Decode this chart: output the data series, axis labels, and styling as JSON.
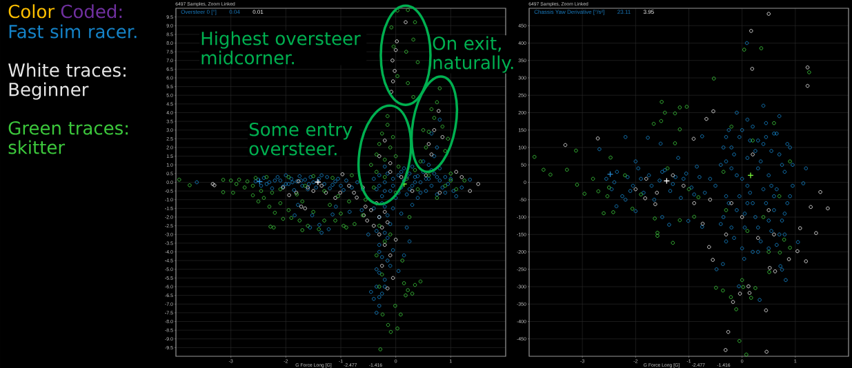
{
  "chart_data": [
    {
      "type": "scatter",
      "title": "6497 Samples, Zoom Linked",
      "xlabel": "G Force Long [G]",
      "ylabel": "Oversteer 0 [°]",
      "annotations": [
        "Color",
        "Coded:",
        {
          "text": "Highest oversteer midcorner.",
          "x": 0.18,
          "y": 7.3
        },
        {
          "text": "Some entry oversteer.",
          "x": -0.2,
          "y": 1.3
        },
        {
          "text": "On exit, naturally.",
          "x": 0.8,
          "y": 5.4
        },
        "0.04",
        "0.01",
        "-2.477",
        "-1.416"
      ],
      "xlim": [
        -4,
        2
      ],
      "ylim": [
        -10,
        10
      ],
      "xticks": [
        -3,
        -2,
        -1,
        0,
        1
      ],
      "yticks": [
        -9.5,
        {
          "value": -9,
          "label": "-9.0"
        },
        -8.5,
        {
          "value": -8,
          "label": "-8.0"
        },
        -7.5,
        {
          "value": -7,
          "label": "-7.0"
        },
        -6.5,
        {
          "value": -6,
          "label": "-6.0"
        },
        -5.5,
        {
          "value": -5,
          "label": "-5.0"
        },
        -4.5,
        {
          "value": -4,
          "label": "-4.0"
        },
        -3.5,
        {
          "value": -3,
          "label": "-3.0"
        },
        -2.5,
        {
          "value": -2,
          "label": "-2.0"
        },
        -1.5,
        {
          "value": -1,
          "label": "-1.0"
        },
        -0.5,
        {
          "value": 0,
          "label": "0.0"
        },
        0.5,
        {
          "value": 1,
          "label": "1.0"
        },
        1.5,
        {
          "value": 2,
          "label": "2.0"
        },
        2.5,
        {
          "value": 3,
          "label": "3.0"
        },
        3.5,
        {
          "value": 4,
          "label": "4.0"
        },
        4.5,
        {
          "value": 5,
          "label": "5.0"
        },
        5.5,
        {
          "value": 6,
          "label": "6.0"
        },
        6.5,
        {
          "value": 7,
          "label": "7.0"
        },
        7.5,
        {
          "value": 8,
          "label": "8.0"
        },
        8.5,
        {
          "value": 9,
          "label": "9.0"
        },
        9.5
      ],
      "grid": true,
      "legend": "left",
      "marker": "circle",
      "series": [
        {
          "name": "Fast sim racer.",
          "color": "#1583c8",
          "x": [
            -2.55,
            -2.45,
            -2.4,
            -2.3,
            -2.25,
            -2.15,
            -2.1,
            -2.05,
            -2.0,
            -1.95,
            -1.9,
            -1.85,
            -1.8,
            -1.75,
            -1.7,
            -1.65,
            -1.6,
            -1.55,
            -1.5,
            -1.45,
            -1.4,
            -1.3,
            -1.25,
            -1.2,
            -1.1,
            -1.0,
            -0.9,
            -0.8,
            -0.7,
            -0.6,
            -3.62,
            -1.35,
            -1.56,
            -1.39,
            -1.22,
            -1.52,
            -1.15,
            -1.09,
            -0.84,
            -1.84,
            -1.78,
            -0.62,
            -0.4,
            -0.35,
            -0.3,
            -0.25,
            -0.2,
            -0.15,
            -0.1,
            -0.05,
            0.0,
            0.05,
            0.1,
            0.15,
            0.2,
            0.25,
            0.3,
            0.35,
            0.4,
            0.45,
            0.5,
            0.55,
            0.6,
            0.65,
            0.7,
            0.75,
            0.8,
            0.85,
            0.9,
            0.95,
            1.0,
            0.3,
            0.5,
            0.7,
            0.75,
            0.6,
            0.15,
            -0.2,
            0.8,
            1.05,
            -0.4,
            -0.3,
            -0.2,
            -0.1,
            -0.35,
            -0.15,
            -0.3,
            -0.05,
            -0.25,
            -0.1,
            -0.3,
            -0.2,
            -0.35,
            -0.25,
            -0.4,
            -0.3,
            -0.35,
            0.1,
            0.2,
            0.25,
            0.15,
            0.3,
            0.05,
            -0.45,
            -0.5,
            1.2,
            1.35,
            1.1,
            0.65,
            0.8,
            -2.5,
            -2.35,
            -2.2,
            -2.0,
            -1.88,
            -1.72,
            -1.58,
            -1.42,
            -1.35,
            -1.15,
            -1.05,
            -0.95,
            -0.3,
            -0.2,
            -0.05,
            0.05,
            0.1,
            0.25,
            0.35,
            0.45,
            0.55,
            0.65,
            0.75,
            0.9,
            0.4,
            0.2,
            -0.25,
            -0.15,
            -0.05,
            -0.2,
            -0.3,
            -0.15,
            -0.35,
            -0.2,
            -0.3
          ],
          "values": [
            0.05,
            -0.2,
            0.25,
            0.0,
            -0.35,
            0.3,
            0.1,
            -0.25,
            0.4,
            -0.1,
            0.2,
            -0.45,
            0.05,
            0.35,
            -0.2,
            0.15,
            -0.4,
            0.3,
            0.0,
            -0.3,
            0.2,
            -0.1,
            0.3,
            -0.35,
            0.05,
            -0.2,
            0.1,
            -0.3,
            0.0,
            -0.4,
            0.0,
            -2.9,
            -2.6,
            -2.45,
            -2.7,
            -1.9,
            -1.85,
            -1.4,
            -1.7,
            -1.9,
            -1.3,
            -1.6,
            0.2,
            -0.4,
            0.4,
            -0.8,
            0.0,
            0.5,
            -0.5,
            0.2,
            -0.9,
            0.4,
            -0.3,
            0.1,
            -0.7,
            0.5,
            -0.2,
            0.3,
            -0.9,
            0.0,
            0.6,
            -0.5,
            0.2,
            -0.2,
            0.5,
            -0.7,
            0.1,
            -0.3,
            0.3,
            -0.1,
            0.2,
            0.9,
            1.2,
            1.5,
            2.0,
            1.0,
            0.8,
            0.9,
            0.8,
            -0.5,
            -1.5,
            -2.0,
            -1.4,
            -2.4,
            -2.8,
            -3.2,
            -3.6,
            -3.9,
            -4.3,
            -4.8,
            -5.2,
            -5.6,
            -6.0,
            -6.4,
            -6.7,
            -7.1,
            -7.5,
            -1.8,
            -2.6,
            -3.4,
            -4.2,
            -1.3,
            -5.1,
            -6.3,
            -3.0,
            -0.3,
            0.15,
            -0.8,
            2.8,
            3.6,
            0.15,
            -0.1,
            0.1,
            -0.1,
            0.0,
            0.1,
            -0.1,
            0.05,
            0.4,
            -0.15,
            0.2,
            -0.45,
            -0.2,
            -0.5,
            -0.2,
            -0.6,
            0.6,
            -0.4,
            0.0,
            -0.6,
            0.2,
            0.7,
            0.3,
            -0.6,
            0.35,
            0.3,
            -1.2,
            -1.9,
            -1.5,
            -2.9,
            -4.0,
            -4.5,
            -5.0,
            -6.0,
            -6.6
          ]
        },
        {
          "name": "White traces: Beginner",
          "color": "#e6e6e6",
          "x": [
            -3.33,
            -3.3,
            -2.05,
            -1.94,
            -1.81,
            -1.77,
            -1.72,
            -1.65,
            -1.6,
            -1.5,
            -1.35,
            -1.27,
            -1.1,
            -1.01,
            -0.97,
            -0.85,
            -0.76,
            -0.71,
            -0.6,
            -0.55,
            -0.58,
            -0.52,
            -0.45,
            -0.4,
            -0.35,
            -0.3,
            -0.25,
            -0.2,
            -0.15,
            -0.3,
            -0.2,
            -0.1,
            -0.25,
            0.0,
            -0.05,
            -0.15,
            0.1,
            0.3,
            0.55,
            0.8,
            -0.1,
            -0.08,
            -0.05,
            -0.02,
            -0.06,
            0.0,
            0.02,
            0.18,
            -0.3,
            -0.2,
            -0.1,
            0.6,
            0.7,
            0.78,
            0.65,
            0.85,
            1.2,
            1.5,
            1.35,
            1.1
          ],
          "values": [
            -0.1,
            -0.17,
            -0.3,
            -0.74,
            -0.6,
            0.06,
            -1.4,
            -1.5,
            -0.3,
            -0.5,
            -0.2,
            -0.6,
            -0.9,
            -0.6,
            0.46,
            -0.2,
            -0.6,
            -0.88,
            -0.3,
            -1.4,
            -1.9,
            -2.2,
            -1.6,
            -2.5,
            -1.2,
            -2.0,
            -2.6,
            -1.7,
            -2.3,
            -3.0,
            -3.6,
            -4.2,
            -4.8,
            -3.3,
            -5.5,
            -6.1,
            0.3,
            -0.5,
            0.4,
            -0.6,
            0.6,
            5.2,
            5.8,
            6.4,
            7.0,
            7.6,
            8.1,
            9.2,
            1.5,
            2.4,
            1.1,
            2.2,
            3.0,
            4.1,
            1.6,
            2.6,
            0.3,
            -0.1,
            -0.5,
            0.6
          ]
        },
        {
          "name": "Green traces: skitter",
          "color": "#3cc83c",
          "x": [
            -3.94,
            -3.75,
            -3.14,
            -3.14,
            -2.96,
            -3.0,
            -2.9,
            -2.85,
            -2.75,
            -2.7,
            -2.6,
            -2.55,
            -2.45,
            -2.35,
            -2.25,
            -2.1,
            -1.95,
            -1.8,
            -1.65,
            -1.5,
            -1.3,
            -1.15,
            -1.05,
            -0.8,
            -2.6,
            -2.5,
            -2.4,
            -2.3,
            -2.2,
            -2.1,
            -2.05,
            -1.95,
            -1.9,
            -1.75,
            -1.7,
            -1.6,
            -1.5,
            -1.4,
            -1.3,
            -1.2,
            -1.1,
            -1.0,
            -0.95,
            -0.85,
            -0.75,
            -0.6,
            -0.55,
            -2.28,
            -2.22,
            -1.7,
            -0.9,
            -0.4,
            -0.2,
            0.0,
            0.2,
            0.4,
            0.6,
            0.75,
            0.9,
            1.0,
            0.35,
            -0.45,
            -0.35,
            -0.3,
            -0.25,
            -0.15,
            -0.2,
            -0.1,
            0.0,
            -0.05,
            -0.35,
            0.05,
            -0.15,
            0.45,
            0.55,
            0.6,
            0.7,
            0.75,
            0.8,
            0.85,
            0.9,
            0.65,
            0.5,
            0.95,
            0.03,
            0.22,
            0.35,
            -0.08,
            0.32,
            -0.04,
            0.19,
            0.4,
            0.03,
            0.22,
            0.32,
            -0.3,
            -0.2,
            -0.35,
            -0.1,
            -0.25,
            -0.3,
            0.15,
            0.22,
            0.3,
            0.18,
            0.35,
            0.45,
            -0.01,
            0.09,
            -0.24,
            -0.14,
            -0.09,
            0.03,
            -0.28,
            0.12,
            0.25,
            1.1,
            1.25,
            1.0
          ],
          "values": [
            0.15,
            -0.17,
            0.14,
            -0.57,
            -0.6,
            0.1,
            -0.1,
            0.15,
            -0.3,
            0.05,
            -0.2,
            0.25,
            -0.5,
            0.3,
            -0.6,
            -0.4,
            0.3,
            -0.7,
            -0.2,
            0.35,
            -0.5,
            0.25,
            -0.8,
            0.4,
            -0.75,
            -1.1,
            -0.9,
            -1.4,
            -1.75,
            -1.2,
            -2.1,
            -1.6,
            -2.05,
            -2.2,
            -1.1,
            -2.5,
            -1.7,
            -2.7,
            -2.2,
            -1.3,
            -2.2,
            -1.8,
            -2.5,
            -1.1,
            -2.4,
            -1.9,
            -1.0,
            -2.55,
            -2.6,
            -2.75,
            -2.6,
            -0.3,
            0.3,
            -0.6,
            0.2,
            -0.4,
            0.4,
            -0.9,
            -0.2,
            0.1,
            0.7,
            1.0,
            1.6,
            2.2,
            2.8,
            3.3,
            1.3,
            2.0,
            1.5,
            2.6,
            0.6,
            0.9,
            3.8,
            1.2,
            2.0,
            2.9,
            3.7,
            4.6,
            5.4,
            3.2,
            1.8,
            4.2,
            3.0,
            2.5,
            9.87,
            9.9,
            9.2,
            8.9,
            8.2,
            7.8,
            7.5,
            6.9,
            6.1,
            5.7,
            4.9,
            -2.5,
            -3.4,
            -4.2,
            -3.0,
            -5.3,
            -6.0,
            -5.8,
            -6.2,
            -6.4,
            -6.5,
            -5.9,
            -5.7,
            -7.1,
            -7.6,
            -7.6,
            -8.2,
            -8.6,
            -8.4,
            -9.6,
            -4.5,
            -2.0,
            -0.4,
            0.1,
            0.5
          ]
        },
        {
          "type": "scatter",
          "marker": "cross",
          "x": [
            -2.477,
            -1.416,
            0.15
          ],
          "values": [
            0.04,
            0.01,
            -0.1
          ],
          "colors": [
            "#2a8fd8",
            "#ffffff",
            "#7cfc3c"
          ]
        }
      ]
    },
    {
      "type": "scatter",
      "title": "6497 Samples, Zoom Linked",
      "xlabel": "G Force Long [G]",
      "ylabel": "Chassis Yaw Derivative [°/s²]",
      "annotations": [
        "23.11",
        "3.95",
        "-2.477",
        "-1.416"
      ],
      "xlim": [
        -4,
        2
      ],
      "ylim": [
        -500,
        500
      ],
      "xticks": [
        -3,
        -2,
        -1,
        0,
        1
      ],
      "yticks": [
        -450,
        -400,
        -350,
        -300,
        -250,
        -200,
        -150,
        -100,
        -50,
        0,
        50,
        100,
        150,
        200,
        250,
        300,
        350,
        400,
        450
      ],
      "grid": true,
      "marker": "circle",
      "series": [
        {
          "color": "#1583c8",
          "x": [
            -2.55,
            -2.45,
            -2.35,
            -2.25,
            -2.15,
            -2.05,
            -1.95,
            -1.85,
            -1.75,
            -1.65,
            -1.55,
            -1.45,
            -1.35,
            -1.25,
            -1.15,
            -1.05,
            -0.95,
            -0.85,
            -0.7,
            -0.6,
            -2.0,
            -2.19,
            -2.36,
            -1.5,
            -1.37,
            -1.01,
            -0.75,
            -2.68,
            -2.19,
            -1.77,
            -1.53,
            -0.75,
            -1.2,
            -2.0,
            -0.4,
            -0.35,
            -0.3,
            -0.25,
            -0.2,
            -0.15,
            -0.1,
            -0.05,
            0.0,
            0.05,
            0.1,
            0.15,
            0.2,
            0.25,
            0.3,
            0.35,
            0.4,
            0.45,
            0.5,
            0.55,
            0.6,
            0.65,
            0.7,
            0.75,
            0.8,
            0.85,
            0.9,
            0.95,
            0.2,
            0.5,
            -0.1,
            0.4,
            0.7,
            0.0,
            0.33,
            0.82,
            0.75,
            0.72,
            -0.48,
            -0.36,
            -0.06,
            0.04,
            1.05,
            1.15,
            1.2,
            0.09,
            0.1,
            0.3,
            0.6,
            -0.3,
            0.8,
            0.45,
            -0.4,
            -0.35,
            -0.3,
            -0.25,
            -0.2,
            -0.15,
            -0.1,
            -0.05,
            0.0,
            0.05,
            0.1,
            0.15,
            0.2,
            0.25,
            0.3,
            0.35,
            0.4,
            0.45,
            0.5,
            0.55,
            0.6,
            0.65,
            0.7,
            0.75,
            0.8,
            0.85,
            0.9,
            0.95,
            0.1,
            0.3,
            -0.3,
            0.65,
            -0.2,
            0.55,
            -2.4,
            -2.1,
            -1.9,
            -1.7,
            -1.5,
            -1.3,
            -1.1,
            -0.9,
            -0.8,
            -0.5
          ],
          "values": [
            10,
            -20,
            30,
            -40,
            15,
            -10,
            40,
            -30,
            20,
            -50,
            5,
            35,
            -25,
            15,
            -45,
            25,
            -15,
            45,
            -30,
            10,
            -83,
            -50,
            -69,
            -100,
            -122,
            -111,
            -128,
            95,
            130,
            128,
            111,
            132,
            70,
            60,
            -120,
            100,
            -40,
            150,
            40,
            -160,
            -80,
            130,
            10,
            -130,
            70,
            -30,
            160,
            -100,
            40,
            -170,
            110,
            -60,
            20,
            -140,
            140,
            -20,
            80,
            -110,
            30,
            -60,
            100,
            -10,
            -200,
            -190,
            200,
            220,
            190,
            -190,
            -338,
            -281,
            -251,
            -241,
            -250,
            -235,
            -299,
            -220,
            -172,
            -3,
            40,
            400,
            -60,
            120,
            -80,
            60,
            -150,
            170,
            50,
            -100,
            130,
            -60,
            -130,
            80,
            20,
            -40,
            150,
            -90,
            -10,
            120,
            -60,
            90,
            -130,
            60,
            -20,
            130,
            -110,
            90,
            -40,
            140,
            -150,
            50,
            -90,
            110,
            -40,
            50,
            180,
            -200,
            -170,
            -180,
            100,
            -10,
            0,
            -25,
            10,
            -10,
            30,
            -5,
            10,
            -35,
            15,
            -10
          ]
        },
        {
          "color": "#e6e6e6",
          "x": [
            1.47,
            1.29,
            1.61,
            1.39,
            1.09,
            1.04,
            1.2,
            0.88,
            0.62,
            0.52,
            0.45,
            0.46,
            -0.31,
            -0.26,
            0.14,
            0.12,
            -0.17,
            -0.04,
            -0.62,
            -0.55,
            -0.74,
            -1.63,
            -1.82,
            -3.32,
            -2.71,
            -0.67,
            -0.54,
            -0.91,
            0.5,
            0.17,
            0.19,
            1.23,
            1.23,
            -2.0,
            -1.8,
            -1.6,
            -1.3,
            -1.1,
            -0.9,
            -0.6,
            -0.3,
            0.0,
            0.3,
            0.6,
            0.2,
            -0.2,
            0.5
          ],
          "values": [
            -28,
            -71,
            -75,
            -146,
            -132,
            -198,
            -227,
            -221,
            -256,
            -246,
            -368,
            -487,
            -482,
            -430,
            -318,
            -299,
            -344,
            -320,
            -186,
            -223,
            -119,
            -63,
            -46,
            107,
            126,
            182,
            204,
            125,
            484,
            435,
            326,
            330,
            277,
            -20,
            10,
            -30,
            20,
            -10,
            -60,
            -50,
            -150,
            -100,
            -160,
            -150,
            80,
            -60,
            -80
          ]
        },
        {
          "color": "#3cc83c",
          "x": [
            -3.9,
            -3.73,
            -3.6,
            -3.29,
            -3.12,
            -2.47,
            -3.1,
            -2.96,
            -2.7,
            -2.6,
            -2.42,
            -2.53,
            -2.06,
            -1.3,
            -1.59,
            -1.59,
            -1.64,
            -1.17,
            -0.82,
            -0.9,
            -1.66,
            -1.52,
            -1.45,
            -1.51,
            -1.26,
            -1.17,
            -1.04,
            -1.17,
            -1.26,
            -0.53,
            0.36,
            1.26,
            0.04,
            -2.8,
            -2.5,
            -2.2,
            -1.9,
            -1.4,
            -1.0,
            -0.05,
            0.08,
            -0.49,
            -0.36,
            -0.21,
            -0.11,
            0.02,
            0.25,
            0.17,
            0.51,
            0.0,
            0.71,
            0.9,
            0.79,
            -0.3,
            0.1,
            0.4,
            0.7,
            0.9,
            0.2,
            -0.2,
            0.6,
            -0.35,
            0.5
          ],
          "values": [
            73,
            36,
            22,
            36,
            91,
            71,
            -7,
            -33,
            -26,
            -89,
            -86,
            -40,
            -76,
            -174,
            -145,
            -154,
            -104,
            -109,
            -43,
            -99,
            168,
            176,
            200,
            231,
            198,
            152,
            217,
            215,
            112,
            298,
            385,
            316,
            381,
            10,
            -15,
            20,
            -35,
            40,
            -20,
            -456,
            -495,
            -303,
            -311,
            -330,
            -365,
            -301,
            -304,
            -332,
            -258,
            -281,
            -202,
            -188,
            -165,
            -80,
            -140,
            -100,
            -40,
            60,
            120,
            160,
            170,
            30,
            -200
          ]
        },
        {
          "type": "scatter",
          "marker": "cross",
          "x": [
            -2.477,
            -1.416,
            0.16
          ],
          "values": [
            23.11,
            3.95,
            20
          ],
          "colors": [
            "#2a8fd8",
            "#ffffff",
            "#7cfc3c"
          ]
        }
      ]
    }
  ]
}
